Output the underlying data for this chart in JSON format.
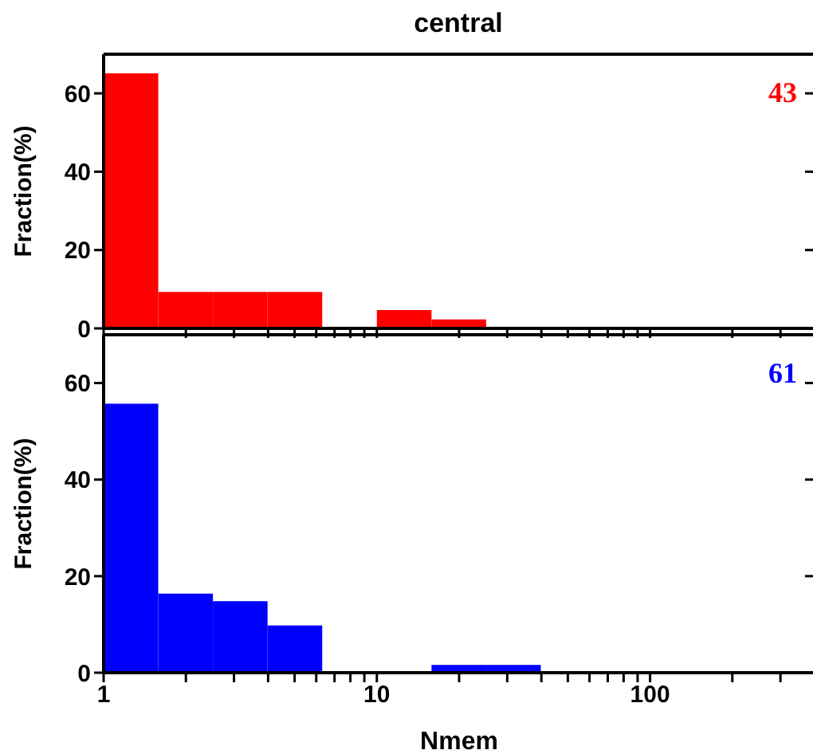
{
  "chart_data": [
    {
      "type": "histogram",
      "title": "central",
      "ylabel": "Fraction(%)",
      "bins": [
        1,
        1.585,
        2.512,
        3.981,
        6.31,
        10,
        15.85,
        25.12
      ],
      "values": [
        65.1,
        9.3,
        9.3,
        9.3,
        0,
        4.7,
        2.3
      ],
      "color": "#ff0000",
      "annotations": [
        "43"
      ],
      "log": "x",
      "xlim": [
        1,
        400
      ],
      "xticks": [
        1,
        {
          "value": 2,
          "label": null
        },
        {
          "value": 3,
          "label": null
        },
        {
          "value": 4,
          "label": null
        },
        {
          "value": 5,
          "label": null
        },
        {
          "value": 6,
          "label": null
        },
        {
          "value": 7,
          "label": null
        },
        {
          "value": 8,
          "label": null
        },
        {
          "value": 9,
          "label": null
        },
        10,
        {
          "value": 20,
          "label": null
        },
        {
          "value": 30,
          "label": null
        },
        {
          "value": 40,
          "label": null
        },
        {
          "value": 50,
          "label": null
        },
        {
          "value": 60,
          "label": null
        },
        {
          "value": 70,
          "label": null
        },
        {
          "value": 80,
          "label": null
        },
        {
          "value": 90,
          "label": null
        },
        100,
        {
          "value": 200,
          "label": null
        },
        {
          "value": 300,
          "label": null
        }
      ],
      "ylim": [
        0,
        70
      ],
      "yticks": [
        0,
        20,
        40,
        60
      ],
      "tick_labels": "y"
    },
    {
      "type": "histogram",
      "xlabel": "Nmem",
      "ylabel": "Fraction(%)",
      "bins": [
        1,
        1.585,
        2.512,
        3.981,
        6.31,
        10,
        15.85,
        25.12,
        39.81
      ],
      "values": [
        55.7,
        16.4,
        14.8,
        9.8,
        0,
        0,
        1.6,
        1.6
      ],
      "color": "#0000ff",
      "annotations": [
        "61"
      ],
      "log": "x",
      "xlim": [
        1,
        400
      ],
      "xticks": [
        1,
        {
          "value": 2,
          "label": null
        },
        {
          "value": 3,
          "label": null
        },
        {
          "value": 4,
          "label": null
        },
        {
          "value": 5,
          "label": null
        },
        {
          "value": 6,
          "label": null
        },
        {
          "value": 7,
          "label": null
        },
        {
          "value": 8,
          "label": null
        },
        {
          "value": 9,
          "label": null
        },
        10,
        {
          "value": 20,
          "label": null
        },
        {
          "value": 30,
          "label": null
        },
        {
          "value": 40,
          "label": null
        },
        {
          "value": 50,
          "label": null
        },
        {
          "value": 60,
          "label": null
        },
        {
          "value": 70,
          "label": null
        },
        {
          "value": 80,
          "label": null
        },
        {
          "value": 90,
          "label": null
        },
        100,
        {
          "value": 200,
          "label": null
        },
        {
          "value": 300,
          "label": null
        }
      ],
      "ylim": [
        0,
        70
      ],
      "yticks": [
        0,
        20,
        40,
        60
      ]
    }
  ]
}
